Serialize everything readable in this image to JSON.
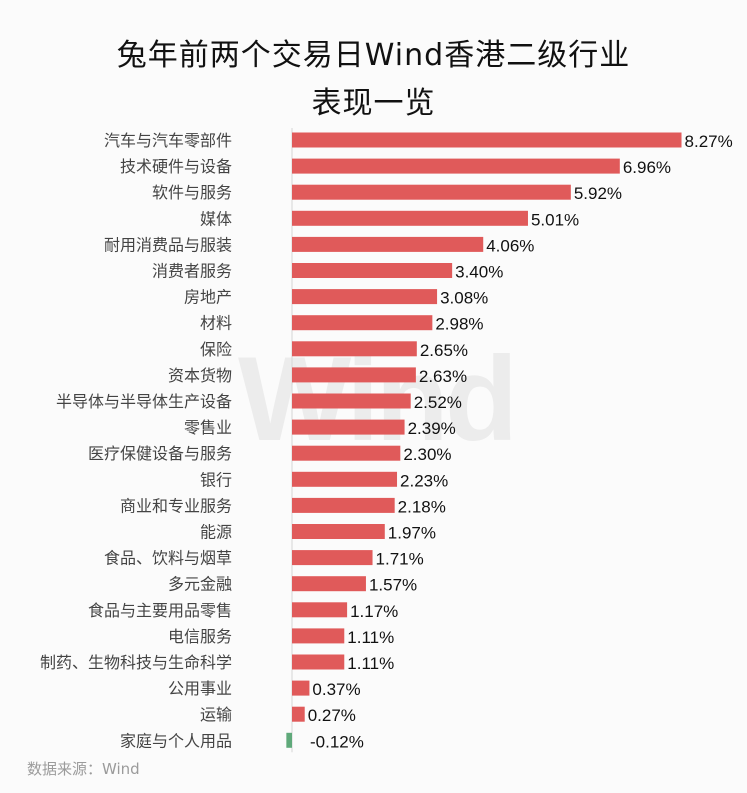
{
  "header": {
    "title_line_1": "兔年前两个交易日Wind香港二级行业",
    "title_line_2": "表现一览"
  },
  "watermark": "Wind",
  "footer": {
    "source": "数据来源：Wind"
  },
  "chart_data": {
    "type": "bar",
    "orientation": "horizontal",
    "title": "兔年前两个交易日Wind香港二级行业表现一览",
    "categories": [
      "汽车与汽车零部件",
      "技术硬件与设备",
      "软件与服务",
      "媒体",
      "耐用消费品与服装",
      "消费者服务",
      "房地产",
      "材料",
      "保险",
      "资本货物",
      "半导体与半导体生产设备",
      "零售业",
      "医疗保健设备与服务",
      "银行",
      "商业和专业服务",
      "能源",
      "食品、饮料与烟草",
      "多元金融",
      "食品与主要用品零售",
      "电信服务",
      "制药、生物科技与生命科学",
      "公用事业",
      "运输",
      "家庭与个人用品"
    ],
    "values": [
      8.27,
      6.96,
      5.92,
      5.01,
      4.06,
      3.4,
      3.08,
      2.98,
      2.65,
      2.63,
      2.52,
      2.39,
      2.3,
      2.23,
      2.18,
      1.97,
      1.71,
      1.57,
      1.17,
      1.11,
      1.11,
      0.37,
      0.27,
      -0.12
    ],
    "value_labels": [
      "8.27%",
      "6.96%",
      "5.92%",
      "5.01%",
      "4.06%",
      "3.40%",
      "3.08%",
      "2.98%",
      "2.65%",
      "2.63%",
      "2.52%",
      "2.39%",
      "2.30%",
      "2.23%",
      "2.18%",
      "1.97%",
      "1.71%",
      "1.57%",
      "1.17%",
      "1.11%",
      "1.11%",
      "0.37%",
      "0.27%",
      "-0.12%"
    ],
    "unit": "%",
    "grid": false,
    "legend": "none",
    "colors": {
      "positive": "#e05a5a",
      "negative": "#5fa97a",
      "axis": "#d6d6d6",
      "category_text": "#444444",
      "value_text": "#111111"
    }
  }
}
